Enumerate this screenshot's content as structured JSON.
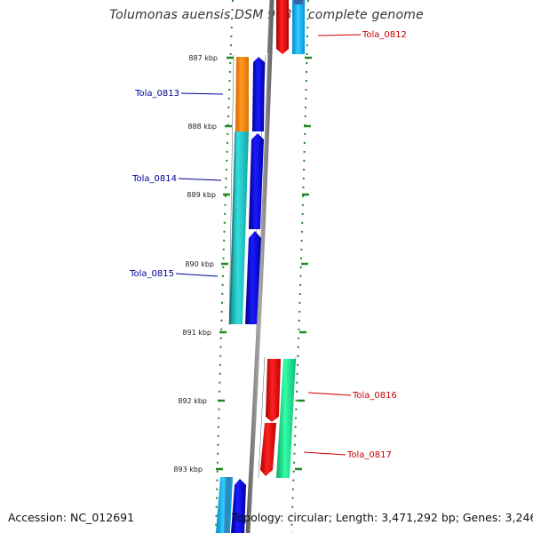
{
  "title": "Tolumonas auensis DSM 9187, complete genome",
  "accession": "Accession: NC_012691",
  "topology": "Topology: circular; Length: 3,471,292 bp; Genes: 3,246",
  "kbp_ticks": [
    "887 kbp",
    "888 kbp",
    "889 kbp",
    "890 kbp",
    "891 kbp",
    "892 kbp",
    "893 kbp"
  ],
  "gene_labels": [
    {
      "text": "Tola_0812",
      "color": "#cc0000"
    },
    {
      "text": "Tola_0813",
      "color": "#000099"
    },
    {
      "text": "Tola_0814",
      "color": "#000099"
    },
    {
      "text": "Tola_0815",
      "color": "#000099"
    },
    {
      "text": "Tola_0816",
      "color": "#cc0000"
    },
    {
      "text": "Tola_0817",
      "color": "#cc0000"
    }
  ],
  "colors": {
    "backbone": "#888888",
    "forward_arrow": "#0000ee",
    "reverse_arrow": "#ee0000",
    "orange_block": "#ff8c00",
    "cyan_block": "#22cccc",
    "green_block": "#22ee99",
    "light_blue_block": "#22bbff",
    "tick": "#228822"
  }
}
